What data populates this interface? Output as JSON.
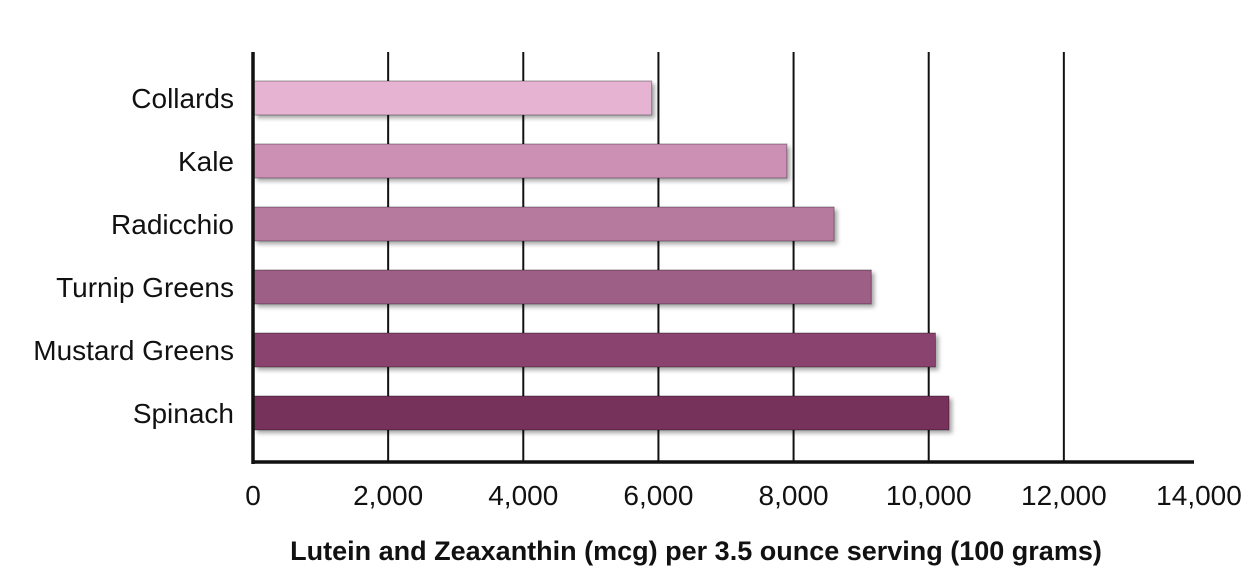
{
  "chart_data": {
    "type": "bar",
    "orientation": "horizontal",
    "categories": [
      "Collards",
      "Kale",
      "Radicchio",
      "Turnip Greens",
      "Mustard Greens",
      "Spinach"
    ],
    "values": [
      5900,
      7900,
      8600,
      9150,
      10100,
      10300
    ],
    "colors": [
      "#e6b3d3",
      "#cc90b5",
      "#b67a9f",
      "#9d5f86",
      "#8a436e",
      "#76305a"
    ],
    "xlabel": "Lutein and Zeaxanthin (mcg) per 3.5 ounce serving (100 grams)",
    "xlim": [
      0,
      14000
    ],
    "xticks": [
      0,
      2000,
      4000,
      6000,
      8000,
      10000,
      12000,
      14000
    ],
    "xtick_labels": [
      "0",
      "2,000",
      "4,000",
      "6,000",
      "8,000",
      "10,000",
      "12,000",
      "14,000"
    ],
    "grid": "vertical"
  }
}
